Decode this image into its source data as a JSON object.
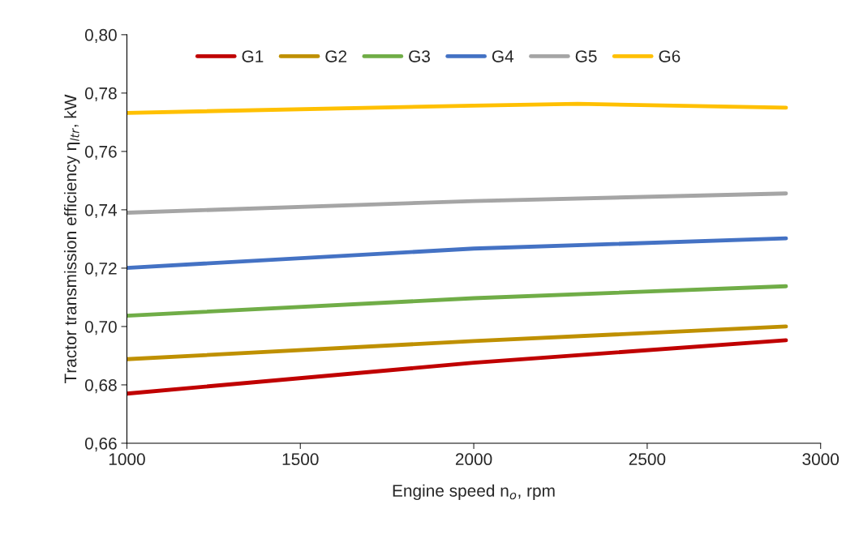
{
  "chart_data": {
    "type": "line",
    "xlabel": "Engine speed n$_{o}$, rpm",
    "ylabel": "Tractor transmission efficiency η$_{ltr}$, kW",
    "xlim": [
      1000,
      3000
    ],
    "xticks": [
      1000,
      1500,
      2000,
      2500,
      3000
    ],
    "ylim": [
      0.66,
      0.8
    ],
    "yticks": [
      {
        "value": 0.66,
        "label": "0,66"
      },
      {
        "value": 0.68,
        "label": "0,68"
      },
      {
        "value": 0.7,
        "label": "0,70"
      },
      {
        "value": 0.72,
        "label": "0,72"
      },
      {
        "value": 0.74,
        "label": "0,74"
      },
      {
        "value": 0.76,
        "label": "0,76"
      },
      {
        "value": 0.78,
        "label": "0,78"
      },
      {
        "value": 0.8,
        "label": "0,80"
      }
    ],
    "grid": false,
    "legend": "top",
    "marker": "none",
    "line_style": "solid",
    "series": [
      {
        "name": "G1",
        "color": "#c00000",
        "x": [
          1000,
          2000,
          2900
        ],
        "values": [
          0.677,
          0.6876,
          0.6953
        ]
      },
      {
        "name": "G2",
        "color": "#bf9000",
        "x": [
          1000,
          2000,
          2900
        ],
        "values": [
          0.6888,
          0.695,
          0.7
        ]
      },
      {
        "name": "G3",
        "color": "#70ad47",
        "x": [
          1000,
          2000,
          2900
        ],
        "values": [
          0.7037,
          0.7097,
          0.7138
        ]
      },
      {
        "name": "G4",
        "color": "#4472c4",
        "x": [
          1000,
          2000,
          2900
        ],
        "values": [
          0.7201,
          0.7267,
          0.7302
        ]
      },
      {
        "name": "G5",
        "color": "#a5a5a5",
        "x": [
          1000,
          2000,
          2900
        ],
        "values": [
          0.739,
          0.743,
          0.7456
        ]
      },
      {
        "name": "G6",
        "color": "#ffc000",
        "x": [
          1000,
          2000,
          2300,
          2900
        ],
        "values": [
          0.7732,
          0.7757,
          0.7763,
          0.775
        ]
      }
    ]
  }
}
